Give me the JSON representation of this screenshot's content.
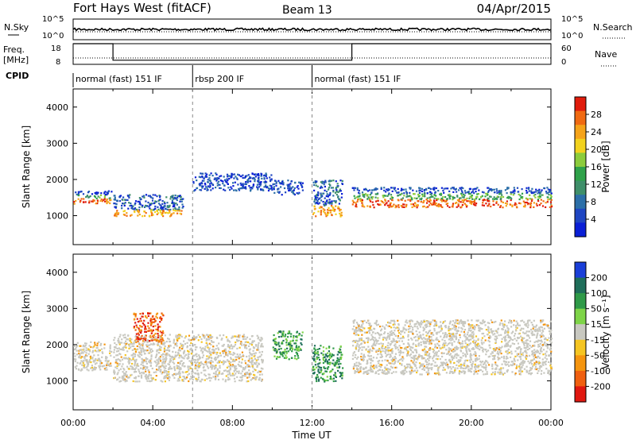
{
  "header": {
    "station": "Fort Hays West (fitACF)",
    "beam": "Beam 13",
    "date": "04/Apr/2015"
  },
  "noise_panel": {
    "left_label": "N.Sky",
    "right_label": "N.Search",
    "left_ticks": [
      "10^5",
      "10^0"
    ],
    "right_ticks": [
      "10^5",
      "10^0"
    ]
  },
  "freq_panel": {
    "left_label": "Freq.",
    "left_unit": "[MHz]",
    "right_label": "Nave",
    "left_ticks": [
      "18",
      "8"
    ],
    "right_ticks": [
      "60",
      "0"
    ]
  },
  "cpid": {
    "label": "CPID",
    "segments": [
      {
        "name": "normal (fast) 151 IF",
        "start_hour": 0,
        "end_hour": 6
      },
      {
        "name": "rbsp 200 IF",
        "start_hour": 6,
        "end_hour": 12
      },
      {
        "name": "normal (fast) 151 IF",
        "start_hour": 12,
        "end_hour": 24
      }
    ]
  },
  "chart_data": [
    {
      "type": "heatmap",
      "title": "",
      "panel": "power",
      "xlabel": "Time UT",
      "ylabel": "Slant Range [km]",
      "x_ticks": [
        "00:00",
        "04:00",
        "08:00",
        "12:00",
        "16:00",
        "20:00",
        "00:00"
      ],
      "xlim_hours": [
        0,
        24
      ],
      "ylim": [
        200,
        4500
      ],
      "y_ticks": [
        1000,
        2000,
        3000,
        4000
      ],
      "colorbar": {
        "label": "Power [dB]",
        "ticks": [
          "4",
          "8",
          "12",
          "16",
          "20",
          "24",
          "28"
        ],
        "range": [
          0,
          30
        ],
        "colors": [
          "#0a1fd6",
          "#1f46c2",
          "#2c6fa8",
          "#3f8f6a",
          "#2fa24a",
          "#8ccc3c",
          "#f2d21e",
          "#f5a31a",
          "#f06a12",
          "#e01c0c"
        ]
      },
      "features": [
        {
          "t0": 0.0,
          "t1": 1.9,
          "range0": 1350,
          "range1": 1700,
          "level": "high"
        },
        {
          "t0": 2.0,
          "t1": 5.5,
          "range0": 1000,
          "range1": 1600,
          "level": "medium"
        },
        {
          "t0": 6.0,
          "t1": 10.0,
          "range0": 1700,
          "range1": 2200,
          "level": "low"
        },
        {
          "t0": 10.0,
          "t1": 11.5,
          "range0": 1600,
          "range1": 2000,
          "level": "low"
        },
        {
          "t0": 12.0,
          "t1": 13.5,
          "range0": 1000,
          "range1": 2000,
          "level": "medium"
        },
        {
          "t0": 14.0,
          "t1": 24.0,
          "range0": 1250,
          "range1": 1800,
          "level": "high"
        }
      ]
    },
    {
      "type": "heatmap",
      "title": "",
      "panel": "velocity",
      "xlabel": "Time UT",
      "ylabel": "Slant Range [km]",
      "x_ticks": [
        "00:00",
        "04:00",
        "08:00",
        "12:00",
        "16:00",
        "20:00",
        "00:00"
      ],
      "xlim_hours": [
        0,
        24
      ],
      "ylim": [
        200,
        4500
      ],
      "y_ticks": [
        1000,
        2000,
        3000,
        4000
      ],
      "colorbar": {
        "label": "Velocity [m s⁻¹]",
        "ticks": [
          "200",
          "100",
          "50",
          "15",
          "-15",
          "-50",
          "-100",
          "-200"
        ],
        "range": [
          -250,
          250
        ],
        "colors": [
          "#1a3fd8",
          "#1f6e5a",
          "#2f9a48",
          "#7ed448",
          "#c8c8c0",
          "#f5c522",
          "#f5950f",
          "#f06010",
          "#e01810"
        ]
      },
      "features": [
        {
          "t0": 0.0,
          "t1": 1.9,
          "range0": 1300,
          "range1": 2100,
          "velocity": "near-zero"
        },
        {
          "t0": 2.0,
          "t1": 9.5,
          "range0": 1000,
          "range1": 2300,
          "velocity": "near-zero"
        },
        {
          "t0": 3.0,
          "t1": 4.5,
          "range0": 2100,
          "range1": 2900,
          "velocity": "negative"
        },
        {
          "t0": 10.0,
          "t1": 11.5,
          "range0": 1600,
          "range1": 2400,
          "velocity": "positive"
        },
        {
          "t0": 12.0,
          "t1": 13.5,
          "range0": 1000,
          "range1": 2000,
          "velocity": "positive"
        },
        {
          "t0": 14.0,
          "t1": 24.0,
          "range0": 1200,
          "range1": 2700,
          "velocity": "near-zero"
        }
      ]
    }
  ]
}
